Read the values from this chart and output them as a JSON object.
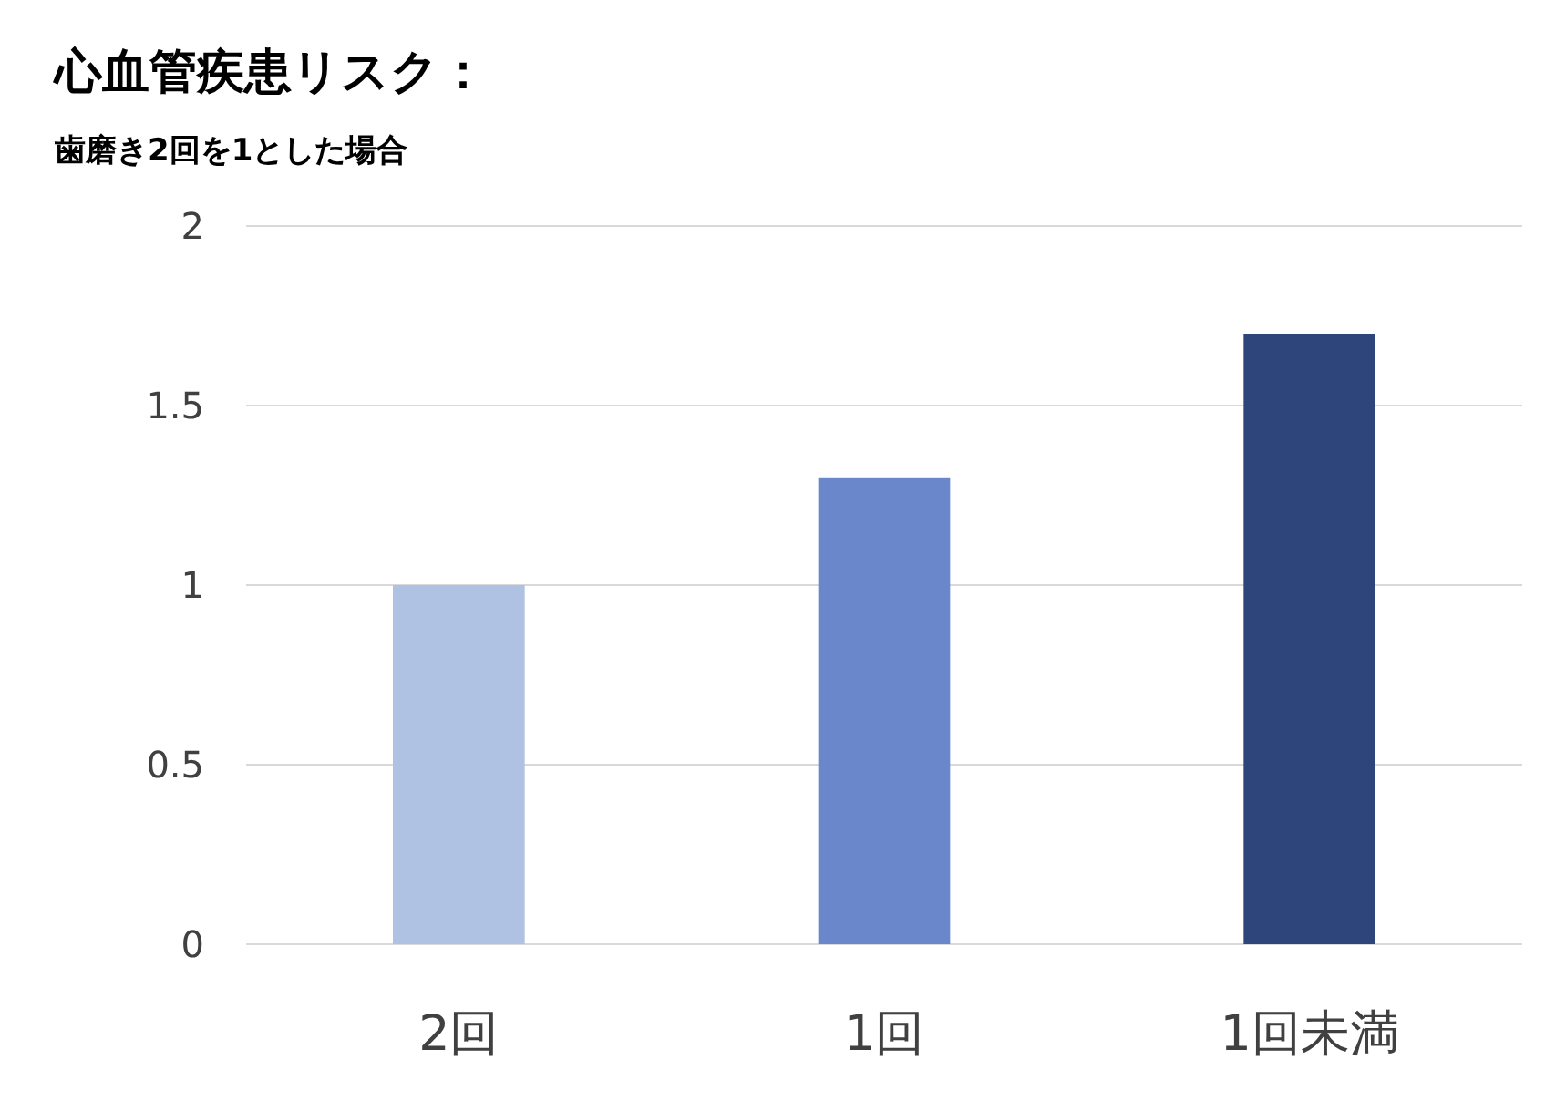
{
  "chart_data": {
    "type": "bar",
    "title": "心血管疾患リスク：",
    "subtitle": "歯磨き2回を1とした場合",
    "categories": [
      "2回",
      "1回",
      "1回未満"
    ],
    "values": [
      1,
      1.3,
      1.7
    ],
    "colors": [
      "#b0c2e4",
      "#6a87cc",
      "#2e457b"
    ],
    "ylim": [
      0,
      2
    ],
    "yticks": [
      0,
      0.5,
      1,
      1.5,
      2
    ],
    "grid": "y"
  }
}
